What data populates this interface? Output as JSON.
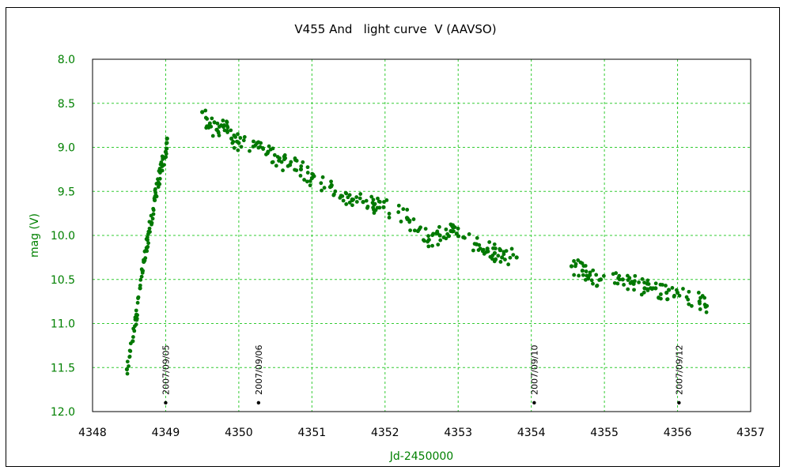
{
  "chart_data": {
    "type": "scatter",
    "title": "V455 And   light curve  V (AAVSO)",
    "xlabel": "Jd-2450000",
    "ylabel": "mag (V)",
    "xlim": [
      4348,
      4357
    ],
    "ylim": [
      8.0,
      12.0
    ],
    "y_inverted": true,
    "x_ticks": [
      "4348",
      "4349",
      "4350",
      "4351",
      "4352",
      "4353",
      "4354",
      "4355",
      "4356",
      "4357"
    ],
    "y_ticks": [
      "8.0",
      "8.5",
      "9.0",
      "9.5",
      "10.0",
      "10.5",
      "11.0",
      "11.5",
      "12.0"
    ],
    "grid": true,
    "series": [
      {
        "color": "#007800",
        "x": [
          4348.47,
          4348.55,
          4348.6,
          4348.65,
          4348.7,
          4348.75,
          4348.8,
          4348.85,
          4348.9,
          4348.95,
          4349.0,
          4349.02,
          4349.5,
          4349.6,
          4349.7,
          4349.8,
          4349.9,
          4350.0,
          4350.25,
          4350.4,
          4350.55,
          4350.7,
          4350.85,
          4351.0,
          4351.25,
          4351.4,
          4351.55,
          4351.7,
          4351.85,
          4351.98,
          4352.3,
          4352.45,
          4352.6,
          4352.75,
          4352.9,
          4352.98,
          4353.25,
          4353.4,
          4353.5,
          4353.6,
          4353.8,
          4354.55,
          4354.7,
          4354.8,
          4354.95,
          4355.25,
          4355.4,
          4355.55,
          4355.7,
          4355.85,
          4356.0,
          4356.3,
          4356.4
        ],
        "y": [
          11.52,
          11.2,
          10.9,
          10.6,
          10.3,
          10.05,
          9.85,
          9.6,
          9.4,
          9.2,
          9.05,
          8.9,
          8.6,
          8.75,
          8.8,
          8.75,
          8.9,
          8.95,
          8.95,
          9.05,
          9.15,
          9.2,
          9.25,
          9.35,
          9.45,
          9.55,
          9.6,
          9.62,
          9.65,
          9.68,
          9.8,
          9.95,
          10.05,
          10.0,
          9.95,
          9.98,
          10.1,
          10.15,
          10.2,
          10.25,
          10.25,
          10.35,
          10.4,
          10.45,
          10.5,
          10.5,
          10.55,
          10.6,
          10.6,
          10.65,
          10.65,
          10.75,
          10.8
        ]
      }
    ],
    "date_markers": [
      {
        "label": "2007/09/05",
        "x": 4349.0,
        "y": 11.9
      },
      {
        "label": "2007/09/06",
        "x": 4350.27,
        "y": 11.9
      },
      {
        "label": "2007/09/10",
        "x": 4354.04,
        "y": 11.9
      },
      {
        "label": "2007/09/12",
        "x": 4356.02,
        "y": 11.9
      }
    ]
  }
}
